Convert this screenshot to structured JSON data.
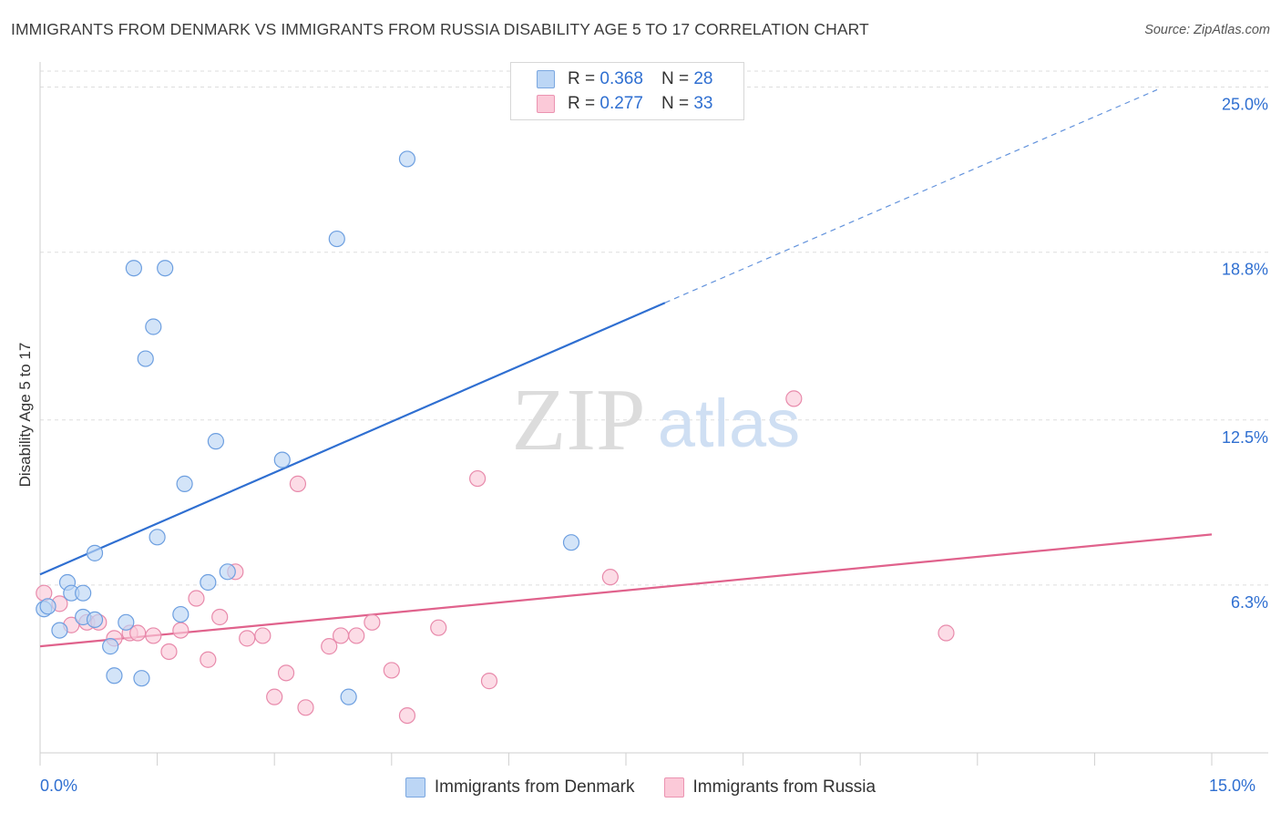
{
  "title": "IMMIGRANTS FROM DENMARK VS IMMIGRANTS FROM RUSSIA DISABILITY AGE 5 TO 17 CORRELATION CHART",
  "source": "Source: ZipAtlas.com",
  "watermark": {
    "zip": "ZIP",
    "atlas": "atlas"
  },
  "legend": {
    "r_label": "R =",
    "n_label": "N =",
    "denmark": {
      "r": "0.368",
      "n": "28"
    },
    "russia": {
      "r": "0.277",
      "n": "33"
    }
  },
  "bottom_legend": {
    "denmark": "Immigrants from Denmark",
    "russia": "Immigrants from Russia"
  },
  "chart_data": {
    "type": "scatter",
    "title": "IMMIGRANTS FROM DENMARK VS IMMIGRANTS FROM RUSSIA DISABILITY AGE 5 TO 17 CORRELATION CHART",
    "xlabel": "",
    "ylabel": "Disability Age 5 to 17",
    "xlim": [
      0,
      15
    ],
    "ylim": [
      0,
      25.6
    ],
    "x_tick_labels": [
      "0.0%",
      "15.0%"
    ],
    "y_ticks": [
      6.3,
      12.5,
      18.8,
      25.0
    ],
    "y_tick_labels": [
      "6.3%",
      "12.5%",
      "18.8%",
      "25.0%"
    ],
    "grid": true,
    "colors": {
      "denmark": "#2f6fd1",
      "russia": "#e0628c",
      "axis_label": "#2f6fd1"
    },
    "series": [
      {
        "name": "Immigrants from Denmark",
        "color": "#2f6fd1",
        "points": [
          [
            0.05,
            5.4
          ],
          [
            0.1,
            5.5
          ],
          [
            0.25,
            4.6
          ],
          [
            0.35,
            6.4
          ],
          [
            0.4,
            6.0
          ],
          [
            0.55,
            6.0
          ],
          [
            0.55,
            5.1
          ],
          [
            0.7,
            5.0
          ],
          [
            0.7,
            7.5
          ],
          [
            0.9,
            4.0
          ],
          [
            0.95,
            2.9
          ],
          [
            1.1,
            4.9
          ],
          [
            1.2,
            18.2
          ],
          [
            1.3,
            2.8
          ],
          [
            1.35,
            14.8
          ],
          [
            1.45,
            16.0
          ],
          [
            1.5,
            8.1
          ],
          [
            1.6,
            18.2
          ],
          [
            1.8,
            5.2
          ],
          [
            1.85,
            10.1
          ],
          [
            2.15,
            6.4
          ],
          [
            2.25,
            11.7
          ],
          [
            2.4,
            6.8
          ],
          [
            3.1,
            11.0
          ],
          [
            3.8,
            19.3
          ],
          [
            3.95,
            2.1
          ],
          [
            4.7,
            22.3
          ],
          [
            6.8,
            7.9
          ]
        ],
        "trend": {
          "x": [
            0,
            8.0
          ],
          "y": [
            6.7,
            16.9
          ],
          "dashed_to": [
            14.3,
            24.9
          ]
        }
      },
      {
        "name": "Immigrants from Russia",
        "color": "#e0628c",
        "points": [
          [
            0.05,
            6.0
          ],
          [
            0.25,
            5.6
          ],
          [
            0.4,
            4.8
          ],
          [
            0.6,
            4.9
          ],
          [
            0.75,
            4.9
          ],
          [
            0.95,
            4.3
          ],
          [
            1.15,
            4.5
          ],
          [
            1.25,
            4.5
          ],
          [
            1.45,
            4.4
          ],
          [
            1.65,
            3.8
          ],
          [
            1.8,
            4.6
          ],
          [
            2.0,
            5.8
          ],
          [
            2.15,
            3.5
          ],
          [
            2.3,
            5.1
          ],
          [
            2.5,
            6.8
          ],
          [
            2.65,
            4.3
          ],
          [
            2.85,
            4.4
          ],
          [
            3.0,
            2.1
          ],
          [
            3.15,
            3.0
          ],
          [
            3.3,
            10.1
          ],
          [
            3.4,
            1.7
          ],
          [
            3.7,
            4.0
          ],
          [
            3.85,
            4.4
          ],
          [
            4.05,
            4.4
          ],
          [
            4.25,
            4.9
          ],
          [
            4.5,
            3.1
          ],
          [
            4.7,
            1.4
          ],
          [
            5.1,
            4.7
          ],
          [
            5.6,
            10.3
          ],
          [
            5.75,
            2.7
          ],
          [
            7.3,
            6.6
          ],
          [
            9.65,
            13.3
          ],
          [
            11.6,
            4.5
          ]
        ],
        "trend": {
          "x": [
            0,
            15.0
          ],
          "y": [
            4.0,
            8.2
          ]
        }
      }
    ]
  }
}
